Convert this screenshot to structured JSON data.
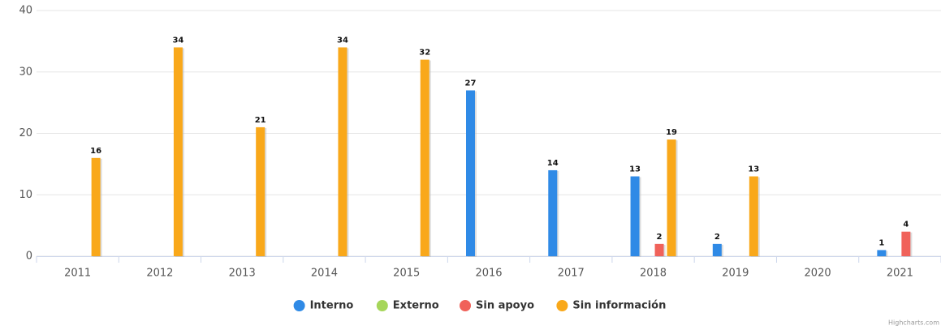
{
  "chart_data": {
    "type": "bar",
    "categories": [
      "2011",
      "2012",
      "2013",
      "2014",
      "2015",
      "2016",
      "2017",
      "2018",
      "2019",
      "2020",
      "2021"
    ],
    "series": [
      {
        "name": "Interno",
        "color": "#2f8ae6",
        "values": [
          null,
          null,
          null,
          null,
          null,
          27,
          14,
          13,
          2,
          null,
          1
        ]
      },
      {
        "name": "Externo",
        "color": "#a6d65a",
        "values": [
          null,
          null,
          null,
          null,
          null,
          null,
          null,
          null,
          null,
          null,
          null
        ]
      },
      {
        "name": "Sin apoyo",
        "color": "#f0625a",
        "values": [
          null,
          null,
          null,
          null,
          null,
          null,
          null,
          2,
          null,
          null,
          4
        ]
      },
      {
        "name": "Sin información",
        "color": "#f9a81a",
        "values": [
          16,
          34,
          21,
          34,
          32,
          null,
          null,
          19,
          13,
          null,
          null
        ]
      }
    ],
    "ylim": [
      0,
      40
    ],
    "yticks": [
      0,
      10,
      20,
      30,
      40
    ],
    "grid": true,
    "legend": "bottom",
    "credits": "Highcharts.com"
  }
}
